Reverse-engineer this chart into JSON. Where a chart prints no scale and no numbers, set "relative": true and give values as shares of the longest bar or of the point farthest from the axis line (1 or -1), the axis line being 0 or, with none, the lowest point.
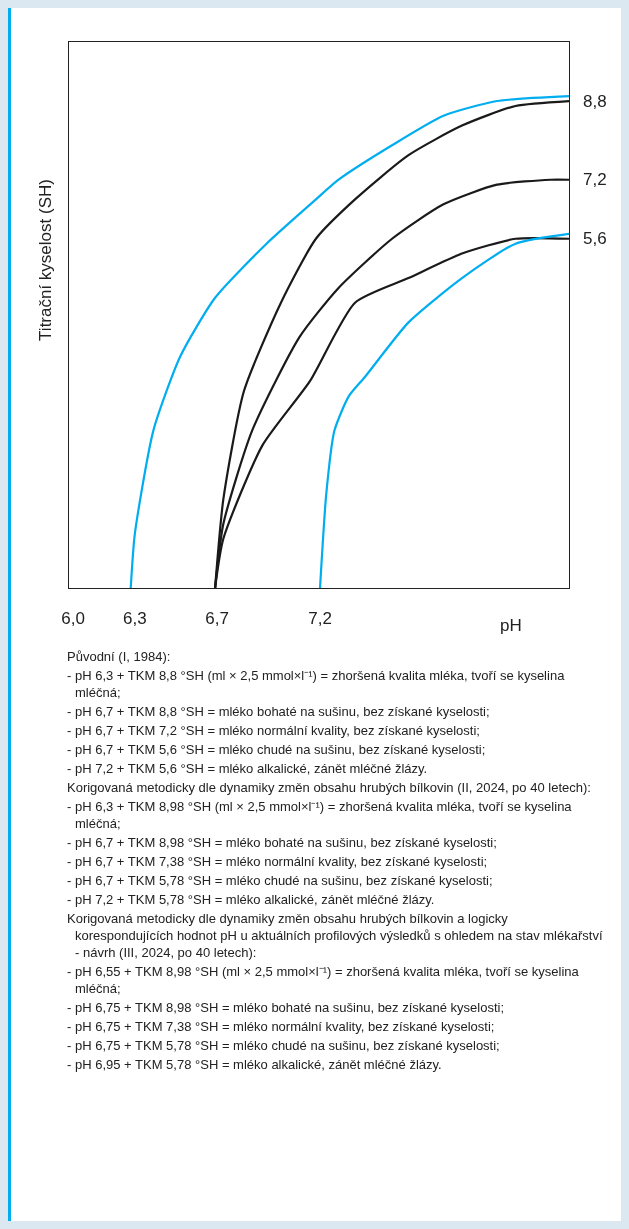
{
  "chart_data": {
    "type": "line",
    "ylabel": "Titrační kyselost (SH)",
    "xlabel": "pH",
    "xlim": [
      5.98,
      8.41
    ],
    "xticks": [
      {
        "value": 6.0,
        "label": "6,0"
      },
      {
        "value": 6.3,
        "label": "6,3"
      },
      {
        "value": 6.7,
        "label": "6,7"
      },
      {
        "value": 7.2,
        "label": "7,2"
      }
    ],
    "relative": true,
    "grid": false,
    "legend": false,
    "marker": "none",
    "line_style": "solid",
    "series": [
      {
        "color": "#00aeef",
        "x": [
          6.28,
          6.3,
          6.39,
          6.52,
          6.69,
          6.94,
          7.18,
          7.29,
          7.55,
          7.8,
          8.06,
          8.41
        ],
        "values": [
          0,
          0.11,
          0.32,
          0.47,
          0.59,
          0.7,
          0.79,
          0.83,
          0.9,
          0.96,
          0.99,
          1
        ]
      },
      {
        "name": "8,8",
        "color": "#1a1a1a",
        "x": [
          6.69,
          6.73,
          6.83,
          7.01,
          7.18,
          7.37,
          7.63,
          7.89,
          8.15,
          8.41
        ],
        "values": [
          0,
          0.18,
          0.4,
          0.58,
          0.71,
          0.79,
          0.88,
          0.94,
          0.98,
          0.99
        ]
      },
      {
        "name": "7,2",
        "color": "#1a1a1a",
        "x": [
          6.69,
          6.73,
          6.87,
          7.1,
          7.29,
          7.55,
          7.8,
          8.06,
          8.32,
          8.41
        ],
        "values": [
          0,
          0.13,
          0.32,
          0.51,
          0.61,
          0.71,
          0.78,
          0.82,
          0.83,
          0.83
        ]
      },
      {
        "name": "5,6",
        "color": "#1a1a1a",
        "x": [
          6.69,
          6.73,
          6.92,
          7.15,
          7.37,
          7.63,
          7.89,
          8.15,
          8.41
        ],
        "values": [
          0,
          0.1,
          0.29,
          0.42,
          0.58,
          0.63,
          0.68,
          0.71,
          0.71
        ]
      },
      {
        "color": "#00aeef",
        "x": [
          7.2,
          7.23,
          7.27,
          7.34,
          7.42,
          7.63,
          7.89,
          8.15,
          8.41
        ],
        "values": [
          0,
          0.19,
          0.32,
          0.39,
          0.43,
          0.54,
          0.63,
          0.7,
          0.72
        ]
      }
    ],
    "annotations": [
      "Původní (I, 1984):",
      "- pH 6,3 + TKM 8,8 °SH (ml × 2,5 mmol×l⁻¹) = zhoršená kvalita mléka, tvoří se kyselina mléčná;",
      "- pH 6,7 + TKM 8,8 °SH = mléko bohaté na sušinu, bez získané kyselosti;",
      "- pH 6,7 + TKM 7,2 °SH = mléko normální kvality, bez získané kyselosti;",
      "- pH 6,7 + TKM 5,6 °SH = mléko chudé na sušinu, bez získané kyselosti;",
      "- pH 7,2 + TKM 5,6 °SH = mléko alkalické, zánět mléčné žlázy.",
      "Korigovaná metodicky dle dynamiky změn obsahu hrubých bílkovin (II, 2024, po 40 letech):",
      "- pH 6,3 + TKM 8,98 °SH (ml × 2,5 mmol×l⁻¹) = zhoršená kvalita mléka, tvoří se kyselina mléčná;",
      "- pH 6,7 + TKM 8,98 °SH = mléko bohaté na sušinu, bez získané kyselosti;",
      "- pH 6,7 + TKM 7,38 °SH = mléko normální kvality, bez získané kyselosti;",
      "- pH 6,7 + TKM 5,78 °SH = mléko chudé na sušinu, bez získané kyselosti;",
      "- pH 7,2 + TKM 5,78 °SH = mléko alkalické, zánět mléčné žlázy.",
      "Korigovaná metodicky dle dynamiky změn obsahu hrubých bílkovin a logicky korespondujících hodnot pH u aktuálních profilových výsledků s ohledem na stav mlékařství - návrh (III, 2024, po 40 letech):",
      "- pH 6,55 + TKM 8,98 °SH (ml × 2,5 mmol×l⁻¹) = zhoršená kvalita mléka, tvoří se kyselina mléčná;",
      "- pH 6,75 + TKM 8,98 °SH = mléko bohaté na sušinu, bez získané kyselosti;",
      "- pH 6,75 + TKM 7,38 °SH = mléko normální kvality, bez získané kyselosti;",
      "- pH 6,75 + TKM 5,78 °SH = mléko chudé na sušinu, bez získané kyselosti;",
      "- pH 6,95 + TKM 5,78 °SH = mléko alkalické, zánět mléčné žlázy."
    ]
  }
}
